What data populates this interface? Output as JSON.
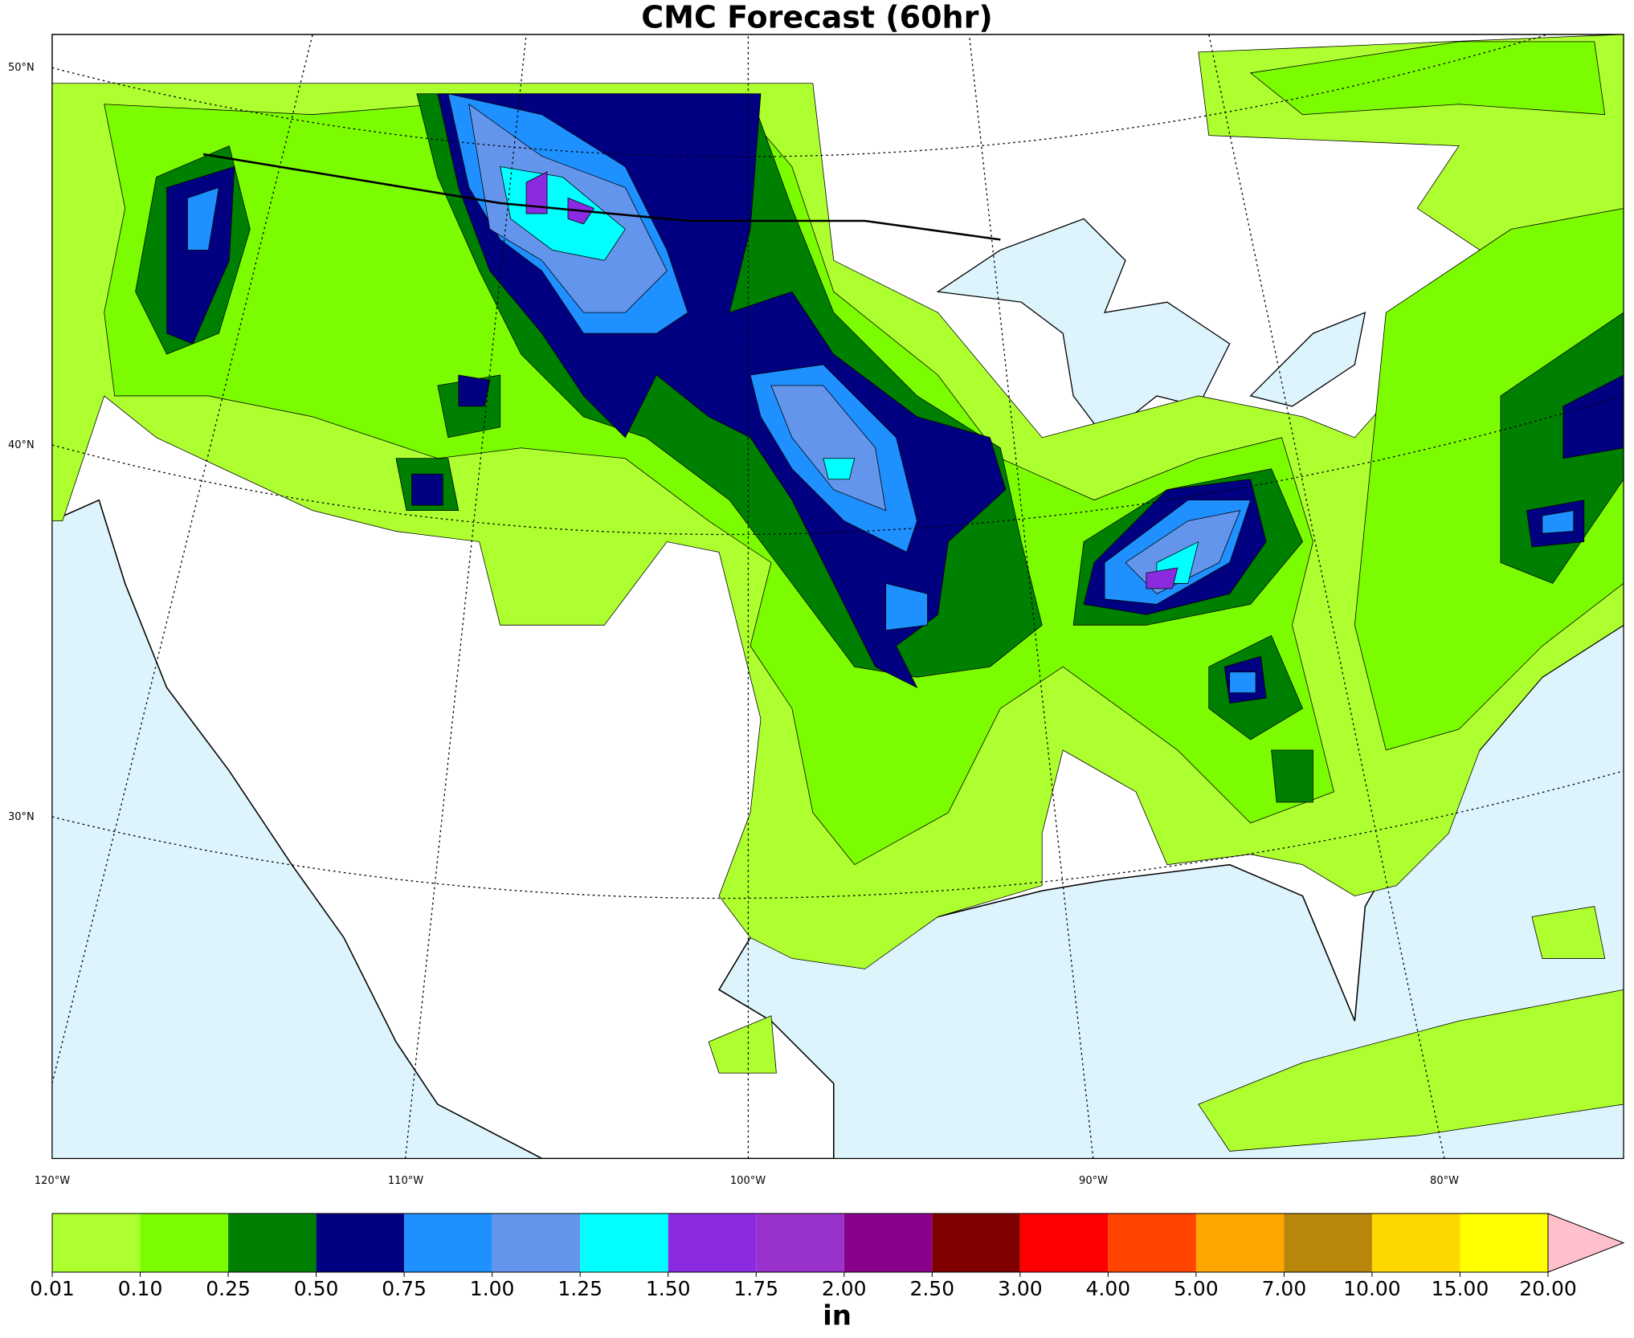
{
  "title": "CMC Forecast (60hr)",
  "map": {
    "lat_labels": [
      "50°N",
      "40°N",
      "30°N"
    ],
    "lon_labels": [
      "120°W",
      "110°W",
      "100°W",
      "90°W",
      "80°W"
    ]
  },
  "colorbar": {
    "label": "in",
    "ticks": [
      {
        "value": 0.01,
        "label": "0.01"
      },
      {
        "value": 0.1,
        "label": "0.10"
      },
      {
        "value": 0.25,
        "label": "0.25"
      },
      {
        "value": 0.5,
        "label": "0.50"
      },
      {
        "value": 0.75,
        "label": "0.75"
      },
      {
        "value": 1,
        "label": "1.00"
      },
      {
        "value": 1.25,
        "label": "1.25"
      },
      {
        "value": 1.5,
        "label": "1.50"
      },
      {
        "value": 1.75,
        "label": "1.75"
      },
      {
        "value": 2,
        "label": "2.00"
      },
      {
        "value": 2.5,
        "label": "2.50"
      },
      {
        "value": 3,
        "label": "3.00"
      },
      {
        "value": 4,
        "label": "4.00"
      },
      {
        "value": 5,
        "label": "5.00"
      },
      {
        "value": 7,
        "label": "7.00"
      },
      {
        "value": 10,
        "label": "10.00"
      },
      {
        "value": 15,
        "label": "15.00"
      },
      {
        "value": 20,
        "label": "20.00"
      }
    ],
    "colors": [
      "#adff2f",
      "#7cfc00",
      "#008000",
      "#000080",
      "#1e90ff",
      "#6495ed",
      "#00ffff",
      "#8a2be2",
      "#9932cc",
      "#8b008b",
      "#800000",
      "#ff0000",
      "#ff4500",
      "#ffa500",
      "#b8860b",
      "#ffd700",
      "#ffff00"
    ],
    "extend_color": "#ffc0cb"
  }
}
